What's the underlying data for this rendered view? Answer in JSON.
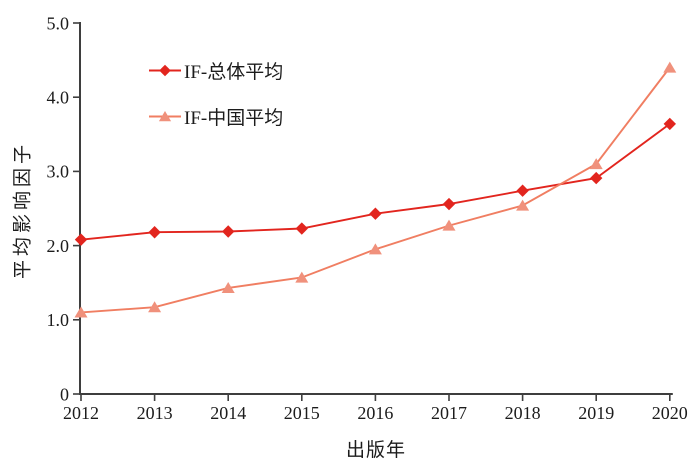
{
  "chart_data": {
    "type": "line",
    "title": "",
    "xlabel": "出版年",
    "ylabel": "平均影响因子",
    "x": [
      2012,
      2013,
      2014,
      2015,
      2016,
      2017,
      2018,
      2019,
      2020
    ],
    "xtick_labels": [
      "2012",
      "2013",
      "2014",
      "2015",
      "2016",
      "2017",
      "2018",
      "2019",
      "2020"
    ],
    "ylim": [
      0,
      5
    ],
    "ytick_values": [
      0,
      1,
      2,
      3,
      4,
      5
    ],
    "ytick_labels": [
      "0",
      "1.0",
      "2.0",
      "3.0",
      "4.0",
      "5.0"
    ],
    "grid": false,
    "legend_position": "inside-top-left",
    "axis_color": "#3E3E3E",
    "text_color": "#1C1C1C",
    "series": [
      {
        "key": "if-overall",
        "name": "IF-总体平均",
        "marker": "diamond",
        "marker_color": "#E2251E",
        "line_color": "#E2251E",
        "values": [
          2.08,
          2.18,
          2.19,
          2.23,
          2.43,
          2.56,
          2.74,
          2.91,
          3.64
        ]
      },
      {
        "key": "if-china",
        "name": "IF-中国平均",
        "marker": "triangle",
        "marker_color": "#F0917C",
        "line_color": "#F07E62",
        "values": [
          1.1,
          1.17,
          1.43,
          1.57,
          1.95,
          2.27,
          2.54,
          3.1,
          4.4
        ]
      }
    ]
  }
}
